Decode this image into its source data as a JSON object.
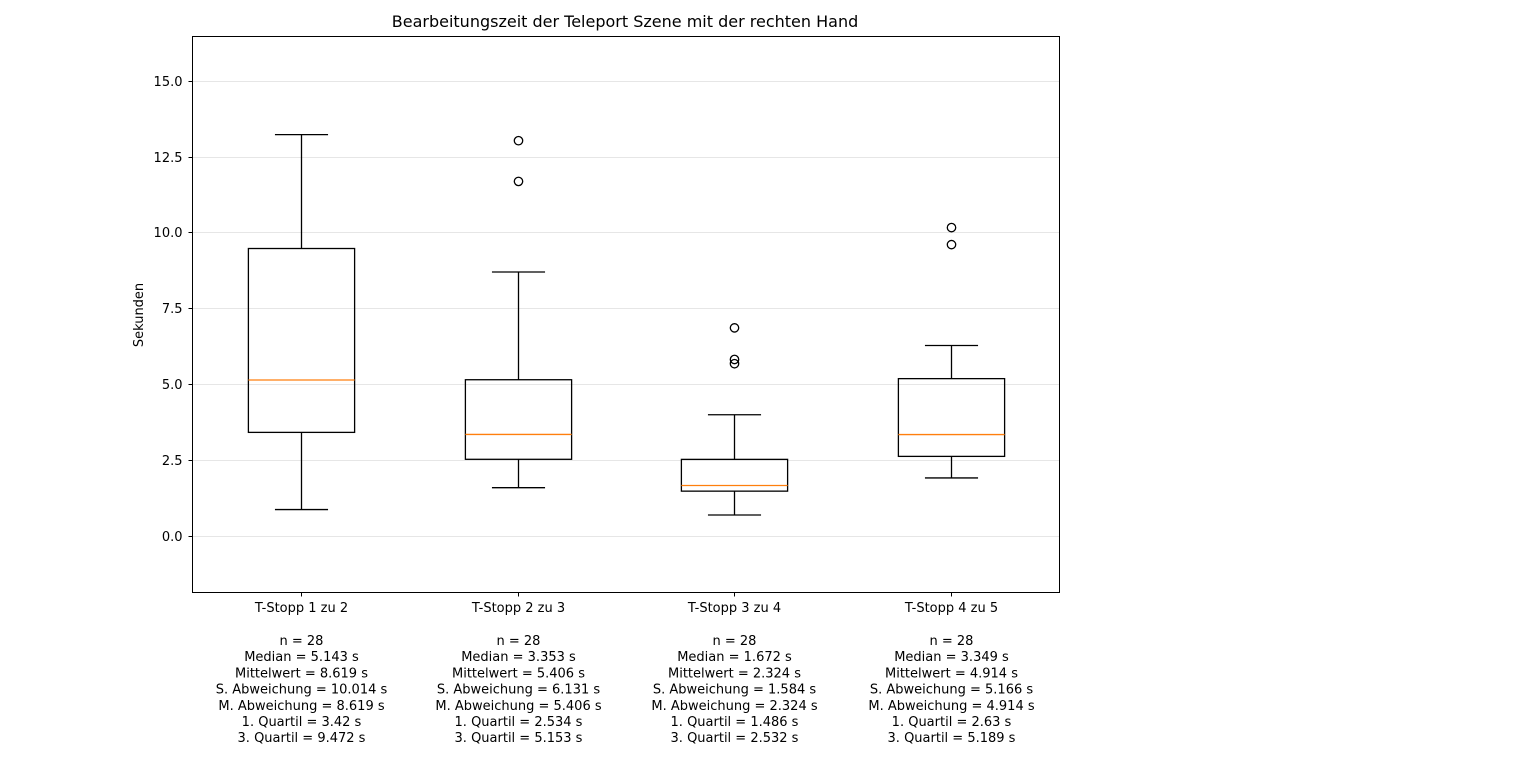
{
  "chart_data": {
    "type": "boxplot",
    "title": "Bearbeitungszeit der Teleport Szene mit der rechten Hand",
    "ylabel": "Sekunden",
    "ylim": [
      -1.85,
      16.45
    ],
    "yticks": [
      0.0,
      2.5,
      5.0,
      7.5,
      10.0,
      12.5,
      15.0
    ],
    "ytick_labels": [
      "0.0",
      "2.5",
      "5.0",
      "7.5",
      "10.0",
      "12.5",
      "15.0"
    ],
    "grid": "horizontal",
    "colors": {
      "box": "#000000",
      "median": "#ff7f0e",
      "grid": "#e6e6e6"
    },
    "groups": [
      {
        "label": "T-Stopp 1 zu 2",
        "whisker_low": 0.88,
        "q1": 3.42,
        "median": 5.143,
        "q3": 9.472,
        "whisker_high": 13.22,
        "outliers": [],
        "stats": [
          "n = 28",
          "Median = 5.143 s",
          "Mittelwert = 8.619 s",
          "S. Abweichung = 10.014 s",
          "M. Abweichung = 8.619 s",
          "1. Quartil = 3.42 s",
          "3. Quartil = 9.472 s"
        ]
      },
      {
        "label": "T-Stopp 2 zu 3",
        "whisker_low": 1.6,
        "q1": 2.534,
        "median": 3.353,
        "q3": 5.153,
        "whisker_high": 8.7,
        "outliers": [
          11.68,
          13.02
        ],
        "stats": [
          "n = 28",
          "Median = 3.353 s",
          "Mittelwert = 5.406 s",
          "S. Abweichung = 6.131 s",
          "M. Abweichung = 5.406 s",
          "1. Quartil = 2.534 s",
          "3. Quartil = 5.153 s"
        ]
      },
      {
        "label": "T-Stopp 3 zu 4",
        "whisker_low": 0.7,
        "q1": 1.486,
        "median": 1.672,
        "q3": 2.532,
        "whisker_high": 4.0,
        "outliers": [
          5.68,
          5.82,
          6.86
        ],
        "stats": [
          "n = 28",
          "Median = 1.672 s",
          "Mittelwert = 2.324 s",
          "S. Abweichung = 1.584 s",
          "M. Abweichung = 2.324 s",
          "1. Quartil = 1.486 s",
          "3. Quartil = 2.532 s"
        ]
      },
      {
        "label": "T-Stopp 4 zu 5",
        "whisker_low": 1.92,
        "q1": 2.63,
        "median": 3.349,
        "q3": 5.189,
        "whisker_high": 6.28,
        "outliers": [
          9.6,
          10.16
        ],
        "stats": [
          "n = 28",
          "Median = 3.349 s",
          "Mittelwert = 4.914 s",
          "S. Abweichung = 5.166 s",
          "M. Abweichung = 4.914 s",
          "1. Quartil = 2.63 s",
          "3. Quartil = 5.189 s"
        ]
      }
    ]
  }
}
